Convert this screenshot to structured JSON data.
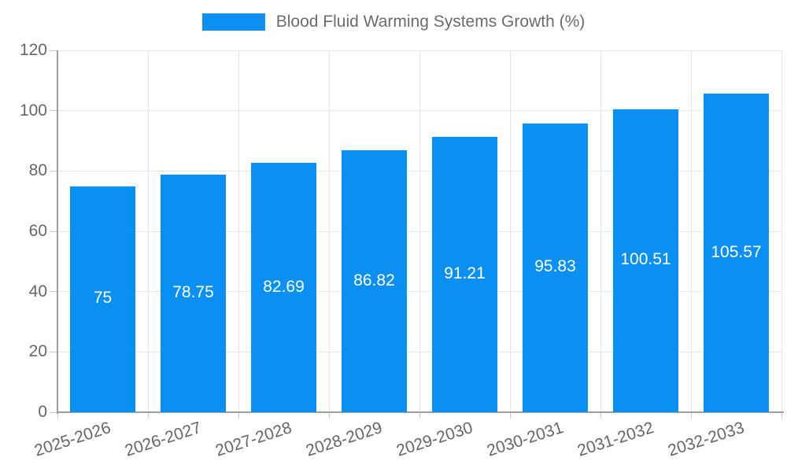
{
  "legend": {
    "label": "Blood Fluid Warming Systems Growth (%)"
  },
  "chart_data": {
    "type": "bar",
    "title": "Blood Fluid Warming Systems Growth (%)",
    "categories": [
      "2025-2026",
      "2026-2027",
      "2027-2028",
      "2028-2029",
      "2029-2030",
      "2030-2031",
      "2031-2032",
      "2032-2033"
    ],
    "values": [
      75,
      78.75,
      82.69,
      86.82,
      91.21,
      95.83,
      100.51,
      105.57
    ],
    "value_labels": [
      "75",
      "78.75",
      "82.69",
      "86.82",
      "91.21",
      "95.83",
      "100.51",
      "105.57"
    ],
    "xlabel": "",
    "ylabel": "",
    "ylim": [
      0,
      120
    ],
    "yticks": [
      0,
      20,
      40,
      60,
      80,
      100,
      120
    ],
    "grid": true,
    "legend_position": "top-center",
    "colors": {
      "bar": "#0a8ff2",
      "value_label": "#ffffff",
      "grid": "#e6e6e6",
      "axis": "#9e9e9e",
      "tick": "#c9c9c9",
      "text": "#666666",
      "legend_text": "#6b6b6b",
      "background": "#ffffff"
    }
  }
}
